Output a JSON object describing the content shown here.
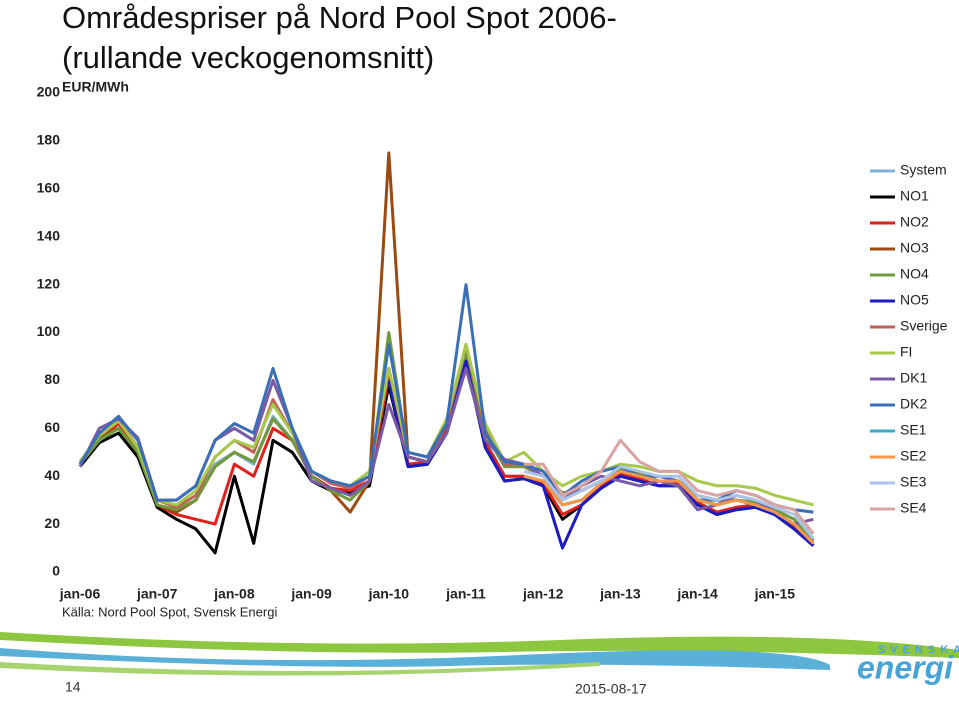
{
  "chart_data": {
    "type": "line",
    "title": [
      "Områdespriser på Nord Pool Spot 2006-",
      "(rullande veckogenomsnitt)"
    ],
    "y_label": "EUR/MWh",
    "categories": [
      "jan-06",
      null,
      null,
      null,
      "jan-07",
      null,
      null,
      null,
      "jan-08",
      null,
      null,
      null,
      "jan-09",
      null,
      null,
      null,
      "jan-10",
      null,
      null,
      null,
      "jan-11",
      null,
      null,
      null,
      "jan-12",
      null,
      null,
      null,
      "jan-13",
      null,
      null,
      null,
      "jan-14",
      null,
      null,
      null,
      "jan-15",
      null,
      null
    ],
    "ylim": [
      0,
      200
    ],
    "yticks": [
      0,
      20,
      40,
      60,
      80,
      100,
      120,
      140,
      160,
      180,
      200
    ],
    "grid": false,
    "legend": "right",
    "series": [
      {
        "name": "System",
        "color": "#7fb2d9",
        "values": [
          45,
          55,
          60,
          50,
          28,
          25,
          30,
          45,
          50,
          45,
          65,
          55,
          40,
          35,
          33,
          38,
          80,
          45,
          45,
          60,
          90,
          55,
          40,
          40,
          38,
          28,
          30,
          37,
          42,
          40,
          38,
          38,
          30,
          28,
          30,
          28,
          25,
          20,
          12
        ]
      },
      {
        "name": "NO1",
        "color": "#000000",
        "values": [
          44,
          54,
          58,
          48,
          27,
          22,
          18,
          8,
          40,
          12,
          55,
          50,
          38,
          34,
          33,
          36,
          78,
          44,
          45,
          58,
          88,
          52,
          38,
          39,
          36,
          22,
          28,
          35,
          40,
          38,
          36,
          36,
          28,
          24,
          26,
          27,
          24,
          18,
          11
        ]
      },
      {
        "name": "NO2",
        "color": "#e0201b",
        "values": [
          46,
          55,
          62,
          52,
          28,
          24,
          22,
          20,
          45,
          40,
          60,
          55,
          40,
          35,
          34,
          38,
          82,
          45,
          46,
          60,
          90,
          54,
          40,
          40,
          37,
          24,
          28,
          36,
          41,
          39,
          36,
          37,
          29,
          25,
          27,
          28,
          25,
          19,
          12
        ]
      },
      {
        "name": "NO3",
        "color": "#9c4a10",
        "values": [
          45,
          56,
          60,
          50,
          28,
          25,
          30,
          44,
          50,
          46,
          64,
          55,
          40,
          34,
          25,
          38,
          175,
          48,
          46,
          62,
          92,
          58,
          44,
          44,
          40,
          33,
          34,
          38,
          43,
          41,
          38,
          38,
          32,
          30,
          30,
          29,
          26,
          22,
          13
        ]
      },
      {
        "name": "NO4",
        "color": "#6f9a3e",
        "values": [
          45,
          55,
          60,
          50,
          28,
          26,
          30,
          44,
          50,
          46,
          64,
          55,
          40,
          34,
          30,
          38,
          100,
          48,
          46,
          62,
          92,
          58,
          44,
          44,
          40,
          33,
          34,
          38,
          43,
          41,
          38,
          38,
          32,
          30,
          30,
          29,
          26,
          22,
          13
        ]
      },
      {
        "name": "NO5",
        "color": "#1c1cc0",
        "values": [
          null,
          null,
          null,
          null,
          null,
          null,
          null,
          null,
          null,
          null,
          null,
          null,
          null,
          null,
          null,
          null,
          80,
          44,
          45,
          58,
          88,
          52,
          38,
          39,
          36,
          10,
          28,
          35,
          40,
          38,
          36,
          36,
          28,
          24,
          26,
          27,
          24,
          18,
          11
        ]
      },
      {
        "name": "Sverige",
        "color": "#c0605a",
        "values": [
          46,
          57,
          64,
          52,
          30,
          27,
          32,
          48,
          55,
          50,
          72,
          58,
          42,
          37,
          35,
          40,
          85,
          48,
          46,
          62,
          95,
          60,
          45,
          45,
          null,
          null,
          null,
          null,
          null,
          null,
          null,
          null,
          null,
          null,
          null,
          null,
          null,
          null,
          null
        ]
      },
      {
        "name": "FI",
        "color": "#a6c94a",
        "values": [
          46,
          57,
          63,
          52,
          30,
          28,
          34,
          48,
          55,
          52,
          70,
          58,
          42,
          38,
          36,
          42,
          85,
          50,
          48,
          64,
          95,
          62,
          46,
          50,
          42,
          36,
          40,
          42,
          45,
          44,
          42,
          42,
          38,
          36,
          36,
          35,
          32,
          30,
          28
        ]
      },
      {
        "name": "DK1",
        "color": "#7b5aa6",
        "values": [
          44,
          60,
          64,
          56,
          30,
          30,
          36,
          55,
          60,
          55,
          80,
          60,
          38,
          35,
          32,
          38,
          70,
          48,
          46,
          58,
          85,
          55,
          47,
          45,
          40,
          30,
          36,
          40,
          38,
          36,
          38,
          36,
          26,
          28,
          32,
          30,
          25,
          20,
          22
        ]
      },
      {
        "name": "DK2",
        "color": "#3a6fb7",
        "values": [
          45,
          58,
          65,
          55,
          30,
          30,
          36,
          55,
          62,
          58,
          85,
          60,
          42,
          38,
          36,
          40,
          95,
          50,
          48,
          62,
          120,
          58,
          46,
          45,
          42,
          32,
          38,
          42,
          44,
          40,
          40,
          38,
          30,
          30,
          34,
          32,
          28,
          26,
          25
        ]
      },
      {
        "name": "SE1",
        "color": "#3ca6c8",
        "values": [
          null,
          null,
          null,
          null,
          null,
          null,
          null,
          null,
          null,
          null,
          null,
          null,
          null,
          null,
          null,
          null,
          null,
          null,
          null,
          null,
          null,
          null,
          null,
          40,
          38,
          28,
          30,
          37,
          42,
          40,
          38,
          38,
          30,
          28,
          30,
          28,
          25,
          20,
          12
        ]
      },
      {
        "name": "SE2",
        "color": "#f79646",
        "values": [
          null,
          null,
          null,
          null,
          null,
          null,
          null,
          null,
          null,
          null,
          null,
          null,
          null,
          null,
          null,
          null,
          null,
          null,
          null,
          null,
          null,
          null,
          null,
          40,
          38,
          28,
          30,
          37,
          42,
          40,
          38,
          38,
          30,
          28,
          30,
          28,
          25,
          20,
          12
        ]
      },
      {
        "name": "SE3",
        "color": "#a9c4e8",
        "values": [
          null,
          null,
          null,
          null,
          null,
          null,
          null,
          null,
          null,
          null,
          null,
          null,
          null,
          null,
          null,
          null,
          null,
          null,
          null,
          null,
          null,
          null,
          null,
          42,
          40,
          30,
          34,
          38,
          44,
          42,
          40,
          40,
          32,
          30,
          32,
          30,
          27,
          24,
          14
        ]
      },
      {
        "name": "SE4",
        "color": "#d9a3a3",
        "values": [
          null,
          null,
          null,
          null,
          null,
          null,
          null,
          null,
          null,
          null,
          null,
          null,
          null,
          null,
          null,
          null,
          null,
          null,
          null,
          null,
          null,
          null,
          null,
          45,
          45,
          32,
          36,
          42,
          55,
          46,
          42,
          42,
          34,
          32,
          34,
          32,
          28,
          26,
          16
        ]
      }
    ]
  },
  "slide": {
    "source": "Källa: Nord Pool Spot, Svensk Energi",
    "page_number": "14",
    "date": "2015-08-17",
    "logo": [
      "SVENSKA",
      "energi"
    ]
  }
}
